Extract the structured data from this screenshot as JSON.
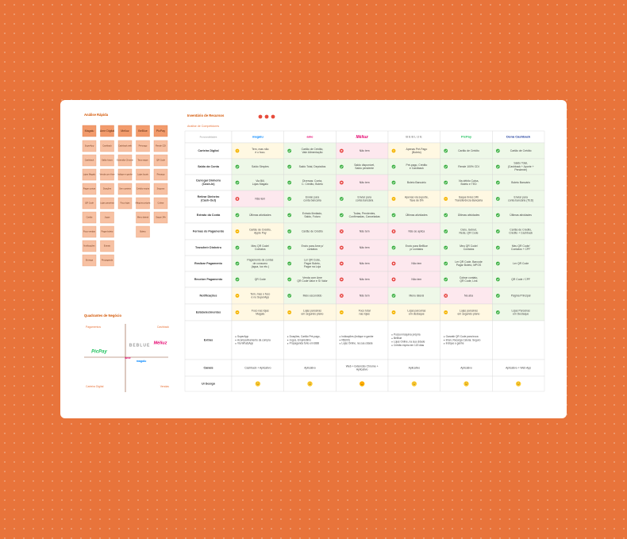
{
  "analysis": {
    "title": "Análise Rápida",
    "columns": [
      {
        "header": "Magalu",
        "notes": [
          "SuperApp",
          "Cashback",
          "Lojas Magalu",
          "Pagar contas",
          "QR Code",
          "Cartão",
          "Foco vendas",
          "Notificações",
          "Entrega"
        ]
      },
      {
        "header": "Ame Digital",
        "notes": [
          "Cashback",
          "Saldo futuro",
          "Venda com Ame",
          "Doações",
          "Lojas parceiras",
          "Jogos",
          "Pagar boleto",
          "Extrato",
          "Propaganda"
        ]
      },
      {
        "header": "Meliuz",
        "notes": [
          "Cashback web",
          "Extensão Chrome",
          "Indique e ganhe",
          "Sem carteira",
          "Foco lojas"
        ]
      },
      {
        "header": "BeBlue",
        "notes": [
          "Pré-pago",
          "Taxa saque",
          "Lojas locais",
          "Crédito expira",
          "Máquina própria",
          "Menu lateral",
          "Boleto"
        ]
      },
      {
        "header": "PicPay",
        "notes": [
          "Rende CDI",
          "QR Code",
          "Recarga",
          "Seguros",
          "Cobrar",
          "Saque 24h"
        ]
      }
    ]
  },
  "quadrant": {
    "title": "Quadrantes de Negócio",
    "top_left": "Pagamentos",
    "top_right": "Cashback",
    "bottom_left": "Carteira Digital",
    "bottom_right": "Vendas",
    "logos": [
      "PicPay",
      "BEBLUE",
      "Méliuz",
      "ame",
      "magalu"
    ]
  },
  "inventory": {
    "title": "Inventário de Recursos",
    "subtitle": "Análise de Competidores",
    "header": [
      "Funcionalidades",
      "magalu",
      "ame",
      "Méliuz",
      "BEBLUE",
      "PicPay",
      "Dona Cashback"
    ],
    "rows": [
      {
        "label": [
          "Carteira Digital"
        ],
        "cells": [
          {
            "status": "partial",
            "lines": [
              "Tem, mas não",
              "é o foco."
            ]
          },
          {
            "status": "ok",
            "lines": [
              "Cartão de Crédito,",
              "Vale Alimentação"
            ]
          },
          {
            "status": "no",
            "lines": [
              "Não tem"
            ]
          },
          {
            "status": "partial",
            "lines": [
              "Apenas Pré-Pago",
              "(Boleto)"
            ]
          },
          {
            "status": "ok",
            "lines": [
              "Cartão de Crédito"
            ]
          },
          {
            "status": "ok",
            "lines": [
              "Cartão de Crédito"
            ]
          }
        ]
      },
      {
        "label": [
          "Saldo da Conta"
        ],
        "cells": [
          {
            "status": "ok",
            "lines": [
              "Saldo Simples"
            ]
          },
          {
            "status": "ok",
            "lines": [
              "Saldo Total, Depósitos"
            ]
          },
          {
            "status": "ok",
            "lines": [
              "Saldo disponível,",
              "Saldo pendente"
            ]
          },
          {
            "status": "ok",
            "lines": [
              "Pré-pago, Crédito",
              "e Cashback"
            ]
          },
          {
            "status": "ok",
            "lines": [
              "Rende 100% CDI"
            ]
          },
          {
            "status": "ok",
            "lines": [
              "Saldo Total,",
              "(Cashback + Aporte +",
              "Pendente)"
            ]
          }
        ]
      },
      {
        "label": [
          "Carregar Dinheiro",
          "(Cash-In)"
        ],
        "cells": [
          {
            "status": "ok",
            "lines": [
              "Via Bill,",
              "Lojas Magalu"
            ]
          },
          {
            "status": "ok",
            "lines": [
              "Diversas: Conta,",
              "C. Crédito, Boleto"
            ]
          },
          {
            "status": "no",
            "lines": [
              "Não tem"
            ]
          },
          {
            "status": "ok",
            "lines": [
              "Boleto Bancário"
            ]
          },
          {
            "status": "ok",
            "lines": [
              "Via débito Caixa,",
              "Boleto e TED"
            ]
          },
          {
            "status": "ok",
            "lines": [
              "Boleto Bancário"
            ]
          }
        ]
      },
      {
        "label": [
          "Retirar Dinheiro",
          "(Cash-Out)"
        ],
        "cells": [
          {
            "status": "no",
            "lines": [
              "Não tem"
            ]
          },
          {
            "status": "ok",
            "lines": [
              "Enviar para",
              "conta bancária"
            ]
          },
          {
            "status": "ok",
            "lines": [
              "Enviar para",
              "conta bancária"
            ]
          },
          {
            "status": "partial",
            "lines": [
              "Apenas via suporte,",
              "Taxa de 6%"
            ]
          },
          {
            "status": "partial",
            "lines": [
              "Saque livres 24h",
              "Transferência Bancária"
            ]
          },
          {
            "status": "ok",
            "lines": [
              "Enviar para",
              "conta bancária (TED)"
            ]
          }
        ]
      },
      {
        "label": [
          "Extrato da Conta"
        ],
        "cells": [
          {
            "status": "ok",
            "lines": [
              "Últimas atividades"
            ]
          },
          {
            "status": "ok",
            "lines": [
              "Extrato Ilimitado,",
              "Saldo, Futuro"
            ]
          },
          {
            "status": "ok",
            "lines": [
              "Todas, Pendentes,",
              "Confirmadas, Canceladas"
            ]
          },
          {
            "status": "ok",
            "lines": [
              "Últimas atividades"
            ]
          },
          {
            "status": "ok",
            "lines": [
              "Últimas atividades"
            ]
          },
          {
            "status": "ok",
            "lines": [
              "Últimas atividades"
            ]
          }
        ]
      },
      {
        "label": [
          "Formas de Pagamento"
        ],
        "cells": [
          {
            "status": "partial",
            "lines": [
              "Cartão de Crédito,",
              "Apple Pay"
            ]
          },
          {
            "status": "ok",
            "lines": [
              "Cartão de Crédito"
            ]
          },
          {
            "status": "no",
            "lines": [
              "Não tem"
            ]
          },
          {
            "status": "no",
            "lines": [
              "Não se aplica"
            ]
          },
          {
            "status": "ok",
            "lines": [
              "Cielo, Getnet,",
              "Rede, QR Code"
            ]
          },
          {
            "status": "ok",
            "lines": [
              "Cartão de Crédito,",
              "Crédito + Cashback"
            ]
          }
        ]
      },
      {
        "label": [
          "Transferir Dinheiro"
        ],
        "cells": [
          {
            "status": "ok",
            "lines": [
              "Meu QR Code/",
              "Contatos"
            ]
          },
          {
            "status": "ok",
            "lines": [
              "Envio para Ame p/",
              "contatos"
            ]
          },
          {
            "status": "no",
            "lines": [
              "Não tem"
            ]
          },
          {
            "status": "ok",
            "lines": [
              "Envio para BeBlue",
              "p/ contatos"
            ]
          },
          {
            "status": "ok",
            "lines": [
              "Meu QR Code/",
              "Contatos"
            ]
          },
          {
            "status": "ok",
            "lines": [
              "Meu QR Code/",
              "Contatos + CPF"
            ]
          }
        ]
      },
      {
        "label": [
          "Realizar Pagamento"
        ],
        "cells": [
          {
            "status": "ok",
            "lines": [
              "Pagamento de contas",
              "de consumo",
              "(água, luz etc.)"
            ]
          },
          {
            "status": "ok",
            "lines": [
              "Ler QR Code,",
              "Pagar Boleto,",
              "Pagar na Loja"
            ]
          },
          {
            "status": "no",
            "lines": [
              "Não tem"
            ]
          },
          {
            "status": "no",
            "lines": [
              "Não tem"
            ]
          },
          {
            "status": "ok",
            "lines": [
              "Ler QR Code, Barcode",
              "Pagar Boleto, MPOS"
            ]
          },
          {
            "status": "ok",
            "lines": [
              "Ler QR Code"
            ]
          }
        ]
      },
      {
        "label": [
          "Receber Pagamento"
        ],
        "cells": [
          {
            "status": "ok",
            "lines": [
              "QR Code"
            ]
          },
          {
            "status": "ok",
            "lines": [
              "Venda com Ame",
              "QR Code Valor e S/ Valor"
            ]
          },
          {
            "status": "no",
            "lines": [
              "Não tem"
            ]
          },
          {
            "status": "no",
            "lines": [
              "Não tem"
            ]
          },
          {
            "status": "ok",
            "lines": [
              "Cobrar contato,",
              "QR Code, Link"
            ]
          },
          {
            "status": "ok",
            "lines": [
              "QR Code / CPF"
            ]
          }
        ]
      },
      {
        "label": [
          "Notificações"
        ],
        "cells": [
          {
            "status": "partial",
            "lines": [
              "Tem, mas o foco",
              "é no SuperApp"
            ]
          },
          {
            "status": "ok",
            "lines": [
              "Meio escondido"
            ]
          },
          {
            "status": "no",
            "lines": [
              "Não tem"
            ]
          },
          {
            "status": "ok",
            "lines": [
              "Menu lateral"
            ]
          },
          {
            "status": "no",
            "lines": [
              "Na aba"
            ]
          },
          {
            "status": "ok",
            "lines": [
              "Página Principal"
            ]
          }
        ]
      },
      {
        "label": [
          "Estabelecimentos"
        ],
        "cells": [
          {
            "status": "partial",
            "lines": [
              "Foco nas lojas",
              "Magalu"
            ]
          },
          {
            "status": "partial",
            "lines": [
              "Lojas parceiras",
              "em segundo plano"
            ]
          },
          {
            "status": "partial",
            "lines": [
              "Foco total",
              "nas lojas"
            ]
          },
          {
            "status": "partial",
            "lines": [
              "Lojas parceiras",
              "em destaque"
            ]
          },
          {
            "status": "partial",
            "lines": [
              "Lojas parceiras",
              "em segundo plano"
            ]
          },
          {
            "status": "ok",
            "lines": [
              "Lojas Parceiras",
              "em Destaque"
            ]
          }
        ]
      }
    ],
    "extras": {
      "label": "Extras",
      "cells": [
        [
          "SuperApp",
          "Acompanhamento da compra",
          "Via WhatsApp"
        ],
        [
          "Doações, Cartão Pré-pago,",
          "Jogos, Empréstimo",
          "Propaganda forte em BBB"
        ],
        [
          "Indicações (Indique e ganhe",
          "R$100)",
          "Lojas Online, na sua cidade"
        ],
        [
          "Possui máquina própria",
          "BeBlue",
          "Lojas Online, na sua cidade",
          "Crédito expira em 120 dias"
        ],
        [
          "Garantir QR Code para troca",
          "Intan, Recarga Celular, Seguro",
          "Indique e ganhe"
        ],
        []
      ]
    },
    "channels": {
      "label": "Canais",
      "cells": [
        [
          "Cashback + Aplicativo"
        ],
        [
          "Aplicativo"
        ],
        [
          "Web + Extensão Chrome +",
          "Aplicativo"
        ],
        [
          "Aplicativo"
        ],
        [
          "Aplicativo"
        ],
        [
          "Aplicativo + Web App"
        ]
      ]
    },
    "ui_design": {
      "label": "UI Design",
      "faces": [
        "neutral",
        "neutral",
        "love",
        "neutral",
        "neutral",
        "neutral"
      ]
    }
  }
}
